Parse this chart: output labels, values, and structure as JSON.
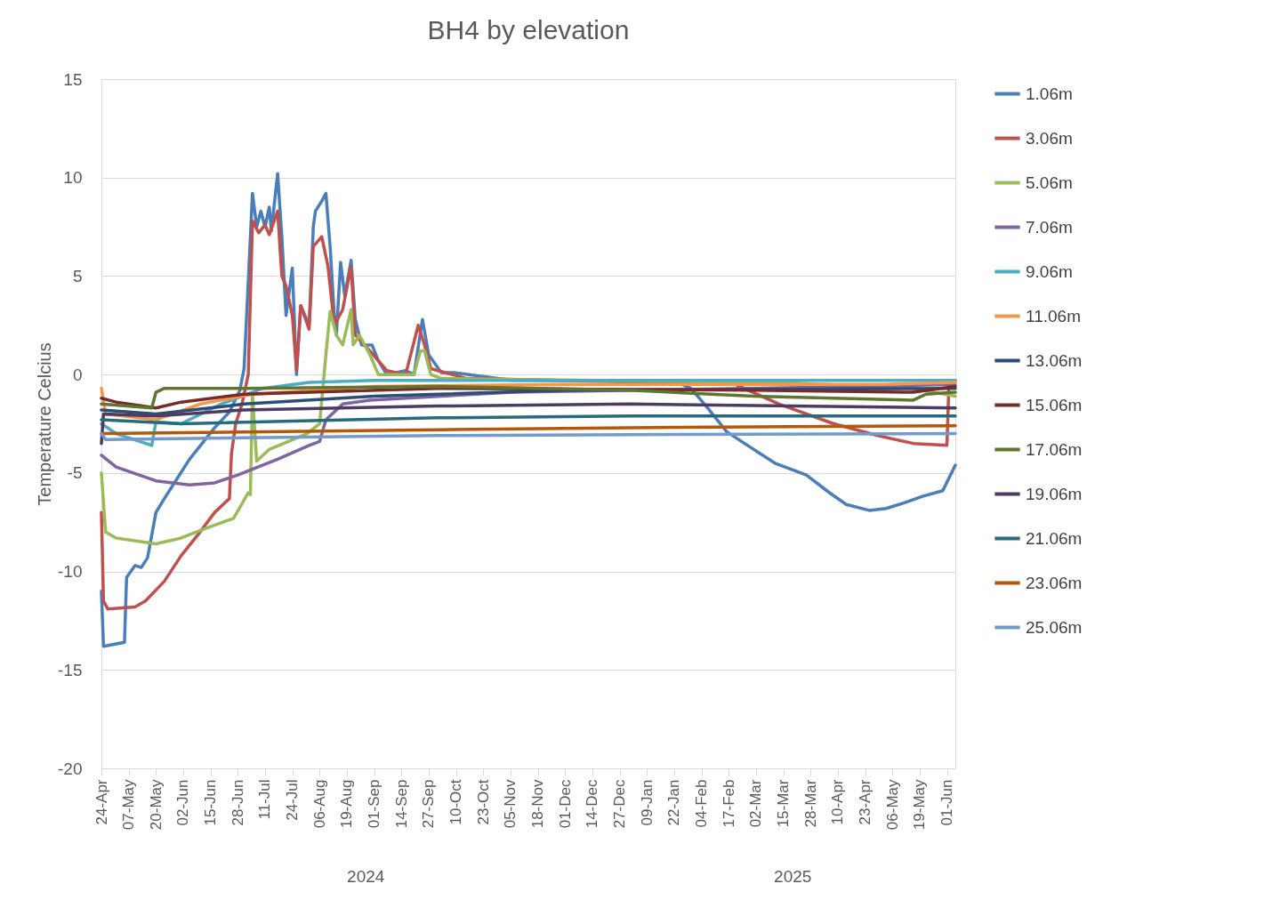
{
  "chart_data": {
    "type": "line",
    "title": "BH4 by elevation",
    "ylabel": "Temperature Celcius",
    "xlim": [
      "2024-04-24",
      "2025-06-05"
    ],
    "ylim": [
      -20,
      15
    ],
    "yticks": [
      -20,
      -15,
      -10,
      -5,
      0,
      5,
      10,
      15
    ],
    "xticks": [
      {
        "value": "2024-04-24",
        "label": "24-Apr"
      },
      {
        "value": "2024-05-07",
        "label": "07-May"
      },
      {
        "value": "2024-05-20",
        "label": "20-May"
      },
      {
        "value": "2024-06-02",
        "label": "02-Jun"
      },
      {
        "value": "2024-06-15",
        "label": "15-Jun"
      },
      {
        "value": "2024-06-28",
        "label": "28-Jun"
      },
      {
        "value": "2024-07-11",
        "label": "11-Jul"
      },
      {
        "value": "2024-07-24",
        "label": "24-Jul"
      },
      {
        "value": "2024-08-06",
        "label": "06-Aug"
      },
      {
        "value": "2024-08-19",
        "label": "19-Aug"
      },
      {
        "value": "2024-09-01",
        "label": "01-Sep"
      },
      {
        "value": "2024-09-14",
        "label": "14-Sep"
      },
      {
        "value": "2024-09-27",
        "label": "27-Sep"
      },
      {
        "value": "2024-10-10",
        "label": "10-Oct"
      },
      {
        "value": "2024-10-23",
        "label": "23-Oct"
      },
      {
        "value": "2024-11-05",
        "label": "05-Nov"
      },
      {
        "value": "2024-11-18",
        "label": "18-Nov"
      },
      {
        "value": "2024-12-01",
        "label": "01-Dec"
      },
      {
        "value": "2024-12-14",
        "label": "14-Dec"
      },
      {
        "value": "2024-12-27",
        "label": "27-Dec"
      },
      {
        "value": "2025-01-09",
        "label": "09-Jan"
      },
      {
        "value": "2025-01-22",
        "label": "22-Jan"
      },
      {
        "value": "2025-02-04",
        "label": "04-Feb"
      },
      {
        "value": "2025-02-17",
        "label": "17-Feb"
      },
      {
        "value": "2025-03-02",
        "label": "02-Mar"
      },
      {
        "value": "2025-03-15",
        "label": "15-Mar"
      },
      {
        "value": "2025-03-28",
        "label": "28-Mar"
      },
      {
        "value": "2025-04-10",
        "label": "10-Apr"
      },
      {
        "value": "2025-04-23",
        "label": "23-Apr"
      },
      {
        "value": "2025-05-06",
        "label": "06-May"
      },
      {
        "value": "2025-05-19",
        "label": "19-May"
      },
      {
        "value": "2025-06-01",
        "label": "01-Jun"
      }
    ],
    "annotations": [
      "2024",
      "2025"
    ],
    "grid": "y",
    "legend": "right",
    "line_style": "solid",
    "marker": "none",
    "series": [
      {
        "name": "1.06m",
        "color": "#4a7ebb",
        "x": [
          "2024-04-24",
          "2024-04-25",
          "2024-05-05",
          "2024-05-06",
          "2024-05-10",
          "2024-05-13",
          "2024-05-16",
          "2024-05-20",
          "2024-05-24",
          "2024-05-30",
          "2024-06-05",
          "2024-06-11",
          "2024-06-17",
          "2024-06-24",
          "2024-06-29",
          "2024-07-01",
          "2024-07-05",
          "2024-07-07",
          "2024-07-09",
          "2024-07-11",
          "2024-07-13",
          "2024-07-14",
          "2024-07-17",
          "2024-07-19",
          "2024-07-21",
          "2024-07-24",
          "2024-07-26",
          "2024-07-28",
          "2024-08-01",
          "2024-08-03",
          "2024-08-04",
          "2024-08-07",
          "2024-08-09",
          "2024-08-11",
          "2024-08-13",
          "2024-08-14",
          "2024-08-16",
          "2024-08-18",
          "2024-08-21",
          "2024-08-23",
          "2024-08-26",
          "2024-08-31",
          "2024-09-03",
          "2024-09-07",
          "2024-09-16",
          "2024-09-20",
          "2024-09-24",
          "2024-09-27",
          "2024-10-03",
          "2024-10-09",
          "2024-11-06",
          "2025-01-21",
          "2025-01-30",
          "2025-02-07",
          "2025-02-16",
          "2025-02-26",
          "2025-03-11",
          "2025-03-26",
          "2025-04-06",
          "2025-04-14",
          "2025-04-25",
          "2025-05-03",
          "2025-05-12",
          "2025-05-20",
          "2025-05-30",
          "2025-06-05"
        ],
        "values": [
          -11,
          -13.8,
          -13.6,
          -10.3,
          -9.7,
          -9.8,
          -9.3,
          -7,
          -6.3,
          -5.3,
          -4.3,
          -3.5,
          -2.7,
          -1.9,
          -0.8,
          0.3,
          9.2,
          7.5,
          8.3,
          7.5,
          8.5,
          7.3,
          10.2,
          7,
          3,
          5.4,
          0,
          3.5,
          2.5,
          7.5,
          8.3,
          8.8,
          9.2,
          6.5,
          3,
          2,
          5.7,
          4,
          5.8,
          2.8,
          1.5,
          1.5,
          0.7,
          0,
          0.2,
          0,
          2.8,
          1,
          0.1,
          0.1,
          -0.3,
          -0.3,
          -0.7,
          -1.7,
          -2.9,
          -3.6,
          -4.5,
          -5.1,
          -6,
          -6.6,
          -6.9,
          -6.8,
          -6.5,
          -6.2,
          -5.9,
          -4.6
        ]
      },
      {
        "name": "3.06m",
        "color": "#c0504d",
        "x": [
          "2024-04-24",
          "2024-04-25",
          "2024-04-27",
          "2024-05-10",
          "2024-05-15",
          "2024-05-24",
          "2024-06-01",
          "2024-06-10",
          "2024-06-17",
          "2024-06-24",
          "2024-06-25",
          "2024-06-27",
          "2024-06-30",
          "2024-07-03",
          "2024-07-05",
          "2024-07-08",
          "2024-07-11",
          "2024-07-13",
          "2024-07-17",
          "2024-07-19",
          "2024-07-21",
          "2024-07-24",
          "2024-07-26",
          "2024-07-28",
          "2024-08-01",
          "2024-08-03",
          "2024-08-07",
          "2024-08-10",
          "2024-08-13",
          "2024-08-17",
          "2024-08-21",
          "2024-08-23",
          "2024-08-30",
          "2024-09-07",
          "2024-09-16",
          "2024-09-22",
          "2024-09-25",
          "2024-09-28",
          "2024-10-15",
          "2025-02-20",
          "2025-03-13",
          "2025-04-08",
          "2025-04-29",
          "2025-05-16",
          "2025-06-01",
          "2025-06-02",
          "2025-06-05"
        ],
        "values": [
          -7,
          -11.5,
          -11.9,
          -11.8,
          -11.5,
          -10.5,
          -9.2,
          -8,
          -7,
          -6.3,
          -4,
          -2.5,
          -1.5,
          0,
          7.8,
          7.2,
          7.6,
          7.1,
          8.3,
          5,
          4.5,
          3,
          0.2,
          3.5,
          2.3,
          6.5,
          7,
          5.5,
          2.5,
          3.3,
          5.5,
          2,
          1.2,
          0.2,
          0,
          2.5,
          1.5,
          0.3,
          -0.2,
          -0.5,
          -1.5,
          -2.5,
          -3.1,
          -3.5,
          -3.6,
          -0.3,
          -0.3
        ]
      },
      {
        "name": "5.06m",
        "color": "#9bbb59",
        "x": [
          "2024-04-24",
          "2024-04-26",
          "2024-05-01",
          "2024-05-20",
          "2024-06-01",
          "2024-06-13",
          "2024-06-26",
          "2024-07-03",
          "2024-07-04",
          "2024-07-05",
          "2024-07-07",
          "2024-07-13",
          "2024-07-31",
          "2024-08-06",
          "2024-08-09",
          "2024-08-11",
          "2024-08-14",
          "2024-08-17",
          "2024-08-21",
          "2024-08-22",
          "2024-08-25",
          "2024-08-30",
          "2024-09-03",
          "2024-09-20",
          "2024-09-23",
          "2024-09-25",
          "2024-09-28",
          "2024-10-03",
          "2024-12-18",
          "2025-03-13",
          "2025-05-16",
          "2025-06-05"
        ],
        "values": [
          -5,
          -8,
          -8.3,
          -8.6,
          -8.3,
          -7.8,
          -7.3,
          -6,
          -6.1,
          -1,
          -4.4,
          -3.8,
          -3,
          -2.5,
          1,
          3.2,
          2,
          1.5,
          3.3,
          1.5,
          2,
          1,
          0,
          0,
          1.2,
          1.2,
          0,
          -0.2,
          -0.3,
          -0.4,
          -0.7,
          -1.1
        ]
      },
      {
        "name": "7.06m",
        "color": "#8064a2",
        "x": [
          "2024-04-24",
          "2024-05-01",
          "2024-05-20",
          "2024-06-05",
          "2024-06-17",
          "2024-06-28",
          "2024-07-17",
          "2024-08-01",
          "2024-08-06",
          "2024-08-09",
          "2024-08-17",
          "2024-08-30",
          "2024-11-06",
          "2025-04-25",
          "2025-06-05"
        ],
        "values": [
          -4.1,
          -4.7,
          -5.4,
          -5.6,
          -5.5,
          -5.1,
          -4.3,
          -3.6,
          -3.4,
          -2.3,
          -1.5,
          -1.3,
          -0.9,
          -0.6,
          -0.5
        ]
      },
      {
        "name": "9.06m",
        "color": "#4bacc6",
        "x": [
          "2024-04-24",
          "2024-05-01",
          "2024-05-18",
          "2024-05-20",
          "2024-06-01",
          "2024-06-20",
          "2024-07-10",
          "2024-08-01",
          "2024-09-01",
          "2025-06-05"
        ],
        "values": [
          -2.5,
          -3,
          -3.6,
          -2.4,
          -2.5,
          -1.5,
          -0.7,
          -0.4,
          -0.3,
          -0.3
        ]
      },
      {
        "name": "11.06m",
        "color": "#f79646",
        "x": [
          "2024-04-24",
          "2024-04-26",
          "2024-05-20",
          "2024-06-10",
          "2024-07-05",
          "2024-09-01",
          "2024-12-01",
          "2025-03-01",
          "2025-05-01",
          "2025-06-05"
        ],
        "values": [
          -0.7,
          -2,
          -2.3,
          -1.5,
          -1,
          -0.6,
          -0.5,
          -0.5,
          -0.5,
          -0.4
        ]
      },
      {
        "name": "13.06m",
        "color": "#2c4d75",
        "x": [
          "2024-04-24",
          "2024-05-20",
          "2024-07-01",
          "2024-09-01",
          "2024-12-01",
          "2025-06-05"
        ],
        "values": [
          -1.8,
          -2,
          -1.5,
          -1.1,
          -0.8,
          -0.7
        ]
      },
      {
        "name": "15.06m",
        "color": "#772c2a",
        "x": [
          "2024-04-24",
          "2024-05-01",
          "2024-05-20",
          "2024-06-01",
          "2024-07-01",
          "2024-10-01",
          "2025-03-01",
          "2025-05-16",
          "2025-06-05"
        ],
        "values": [
          -1.2,
          -1.4,
          -1.7,
          -1.4,
          -1,
          -0.7,
          -0.8,
          -0.9,
          -0.6
        ]
      },
      {
        "name": "17.06m",
        "color": "#5f7530",
        "x": [
          "2024-04-24",
          "2024-05-18",
          "2024-05-20",
          "2024-05-24",
          "2024-07-01",
          "2024-10-01",
          "2025-01-01",
          "2025-03-01",
          "2025-05-16",
          "2025-05-22",
          "2025-06-05"
        ],
        "values": [
          -1.5,
          -1.7,
          -0.9,
          -0.7,
          -0.7,
          -0.6,
          -0.8,
          -1.1,
          -1.3,
          -1,
          -0.9
        ]
      },
      {
        "name": "19.06m",
        "color": "#4d3b62",
        "x": [
          "2024-04-24",
          "2024-04-25",
          "2024-05-20",
          "2024-07-01",
          "2024-10-01",
          "2025-01-01",
          "2025-06-05"
        ],
        "values": [
          -3.5,
          -2,
          -2.1,
          -1.8,
          -1.6,
          -1.5,
          -1.7
        ]
      },
      {
        "name": "21.06m",
        "color": "#276a7c",
        "x": [
          "2024-04-24",
          "2024-06-01",
          "2024-10-01",
          "2025-01-01",
          "2025-06-05"
        ],
        "values": [
          -2.3,
          -2.5,
          -2.2,
          -2.1,
          -2.1
        ]
      },
      {
        "name": "23.06m",
        "color": "#b65708",
        "x": [
          "2024-04-24",
          "2024-10-01",
          "2025-01-01",
          "2025-06-05"
        ],
        "values": [
          -3,
          -2.8,
          -2.7,
          -2.6
        ]
      },
      {
        "name": "25.06m",
        "color": "#729aca",
        "x": [
          "2024-04-24",
          "2024-04-26",
          "2024-10-01",
          "2025-01-01",
          "2025-06-05"
        ],
        "values": [
          -3,
          -3.3,
          -3.1,
          -3.05,
          -3
        ]
      }
    ]
  }
}
